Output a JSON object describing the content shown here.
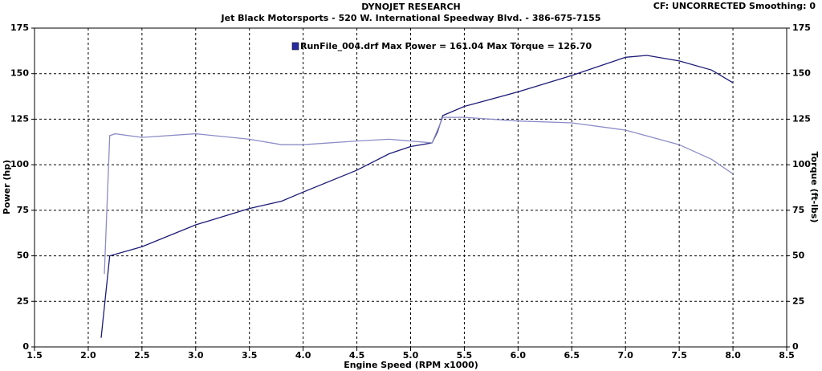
{
  "chart_data": {
    "type": "line",
    "title": "DYNOJET RESEARCH",
    "subtitle": "Jet Black Motorsports - 520 W. International Speedway Blvd. - 386-675-7155",
    "corner_note": "CF: UNCORRECTED  Smoothing: 0",
    "legend": "RunFile_004.drf Max Power = 161.04     Max Torque = 126.70",
    "legend_color": "#2a2aa0",
    "x_label": "Engine Speed (RPM x1000)",
    "y_label": "Power (hp)",
    "y2_label": "Torque (ft-lbs)",
    "xlim": [
      1.5,
      8.5
    ],
    "xticks": [
      1.5,
      {
        "value": 2,
        "label": "2.0"
      },
      2.5,
      {
        "value": 3,
        "label": "3.0"
      },
      3.5,
      {
        "value": 4,
        "label": "4.0"
      },
      4.5,
      {
        "value": 5,
        "label": "5.0"
      },
      5.5,
      {
        "value": 6,
        "label": "6.0"
      },
      6.5,
      {
        "value": 7,
        "label": "7.0"
      },
      7.5,
      {
        "value": 8,
        "label": "8.0"
      },
      8.5
    ],
    "ylim": [
      0,
      175
    ],
    "yticks": [
      0,
      25,
      50,
      75,
      100,
      125,
      150,
      175
    ],
    "y2lim": [
      0,
      175
    ],
    "y2ticks": [
      0,
      25,
      50,
      75,
      100,
      125,
      150,
      175
    ],
    "grid": true,
    "series": [
      {
        "color": "#1c1c78",
        "x": [
          2.12,
          2.2,
          2.5,
          3.0,
          3.5,
          3.8,
          4.0,
          4.5,
          4.8,
          5.0,
          5.2,
          5.25,
          5.3,
          5.5,
          6.0,
          6.5,
          7.0,
          7.2,
          7.5,
          7.8,
          8.0
        ],
        "values": [
          5,
          50,
          55,
          67,
          76,
          80,
          85,
          97,
          106,
          110,
          112,
          118,
          127,
          132,
          140,
          149,
          159,
          160,
          157,
          152,
          145
        ]
      },
      {
        "color": "#8c8cc8",
        "axis": "y2",
        "x": [
          2.15,
          2.2,
          2.25,
          2.5,
          3.0,
          3.5,
          3.8,
          4.0,
          4.5,
          4.8,
          5.0,
          5.2,
          5.3,
          5.5,
          6.0,
          6.5,
          7.0,
          7.5,
          7.8,
          8.0
        ],
        "values": [
          40,
          116,
          117,
          115,
          117,
          114,
          111,
          111,
          113,
          114,
          113,
          112,
          126,
          126,
          124,
          123,
          119,
          111,
          103,
          95
        ]
      }
    ]
  }
}
